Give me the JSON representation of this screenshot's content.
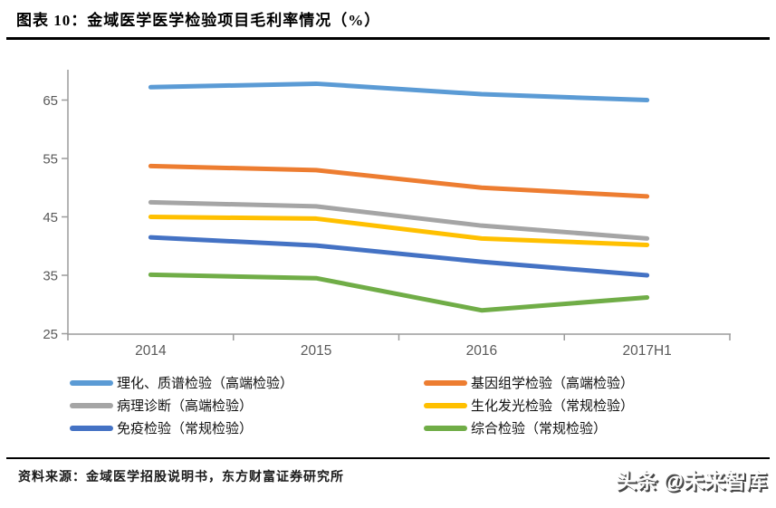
{
  "header": {
    "title": "图表  10：金域医学医学检验项目毛利率情况（%）"
  },
  "footer": {
    "source": "资料来源：金域医学招股说明书，东方财富证券研究所",
    "watermark": "头条 @未来智库"
  },
  "colors": {
    "axis": "#9b9b9b",
    "tick_label": "#595959",
    "rule": "#000000"
  },
  "chart_data": {
    "type": "line",
    "title": "金域医学医学检验项目毛利率情况（%）",
    "categories": [
      "2014",
      "2015",
      "2016",
      "2017H1"
    ],
    "series": [
      {
        "name": "理化、质谱检验（高端检验）",
        "color": "#5B9BD5",
        "values": [
          67.2,
          67.8,
          66.0,
          65.0
        ]
      },
      {
        "name": "基因组学检验（高端检验）",
        "color": "#ED7D31",
        "values": [
          53.7,
          53.0,
          50.0,
          48.5
        ]
      },
      {
        "name": "病理诊断（高端检验）",
        "color": "#A5A5A5",
        "values": [
          47.5,
          46.8,
          43.5,
          41.3
        ]
      },
      {
        "name": "生化发光检验（常规检验）",
        "color": "#FFC000",
        "values": [
          45.0,
          44.7,
          41.3,
          40.2
        ]
      },
      {
        "name": "免疫检验（常规检验）",
        "color": "#4472C4",
        "values": [
          41.5,
          40.1,
          37.3,
          35.0
        ]
      },
      {
        "name": "综合检验（常规检验）",
        "color": "#70AD47",
        "values": [
          35.1,
          34.5,
          29.0,
          31.2
        ]
      }
    ],
    "ylim": [
      25,
      68.5
    ],
    "yticks": [
      25,
      35,
      45,
      55,
      65
    ],
    "grid": false,
    "legend_position": "bottom-two-columns"
  }
}
